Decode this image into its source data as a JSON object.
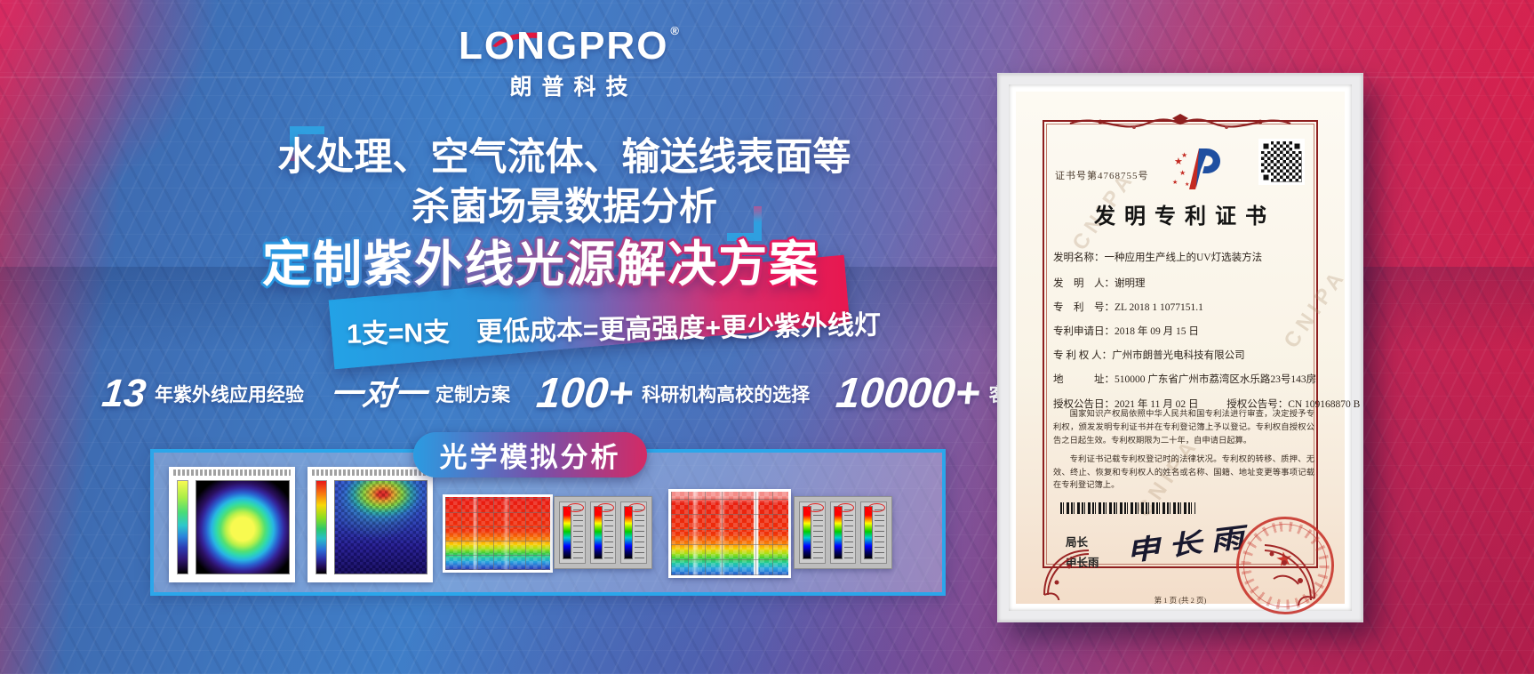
{
  "brand": {
    "logo_text": "LONGPRO",
    "registered": "®",
    "logo_cn": "朗普科技"
  },
  "headline": {
    "line1": "水处理、空气流体、输送线表面等",
    "line2": "杀菌场景数据分析"
  },
  "offer": {
    "title": "定制紫外线光源解决方案",
    "subtitle": "1支=N支　更低成本=更高强度+更少紫外线灯"
  },
  "stats": {
    "items": [
      {
        "value": "13",
        "label": "年紫外线应用经验"
      },
      {
        "value": "一对一",
        "label": "定制方案"
      },
      {
        "value": "100+",
        "label": "科研机构高校的选择"
      },
      {
        "value": "10000+",
        "label": "客户案例见证"
      }
    ]
  },
  "simulation": {
    "badge": "光学模拟分析"
  },
  "certificate": {
    "cert_no": "证书号第4768755号",
    "title": "发明专利证书",
    "fields": [
      {
        "label": "发明名称：",
        "value": "一种应用生产线上的UV灯选装方法"
      },
      {
        "label": "发　明　人：",
        "value": "谢明理"
      },
      {
        "label": "专　利　号：",
        "value": "ZL 2018 1 1077151.1"
      },
      {
        "label": "专利申请日：",
        "value": "2018 年 09 月 15 日"
      },
      {
        "label": "专 利 权 人：",
        "value": "广州市朗普光电科技有限公司"
      },
      {
        "label": "地　　　址：",
        "value": "510000 广东省广州市荔湾区水乐路23号143房"
      },
      {
        "label": "授权公告日：",
        "value": "2021 年 11 月 02 日"
      },
      {
        "label": "授权公告号：",
        "value": "CN 109168870 B"
      }
    ],
    "body1": "国家知识产权局依照中华人民共和国专利法进行审查，决定授予专利权，颁发发明专利证书并在专利登记簿上予以登记。专利权自授权公告之日起生效。专利权期限为二十年，自申请日起算。",
    "body2": "专利证书记载专利权登记时的法律状况。专利权的转移、质押、无效、终止、恢复和专利权人的姓名或名称、国籍、地址变更等事项记载在专利登记簿上。",
    "director_label": "局长",
    "director_name": "申长雨",
    "signature": "申长雨",
    "seal_star": "★",
    "watermark": "CNIPA",
    "footer": "第 1 页 (共 2 页)"
  },
  "colors": {
    "accent_blue": "#2a9ce2",
    "accent_pink": "#e8175c",
    "box_border": "#2ba6ea",
    "cert_red": "#8e1f1f",
    "seal_red": "#c42a22",
    "logo_swoosh_red": "#e8173f"
  }
}
